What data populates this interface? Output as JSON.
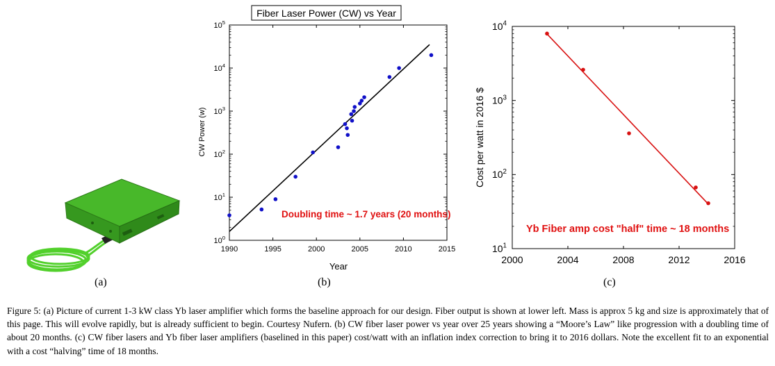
{
  "captions": {
    "a": "(a)",
    "b": "(b)",
    "c": "(c)"
  },
  "caption_text": "Figure 5: (a) Picture of current 1-3 kW class Yb laser amplifier which forms the baseline approach for our design. Fiber output is shown at lower left. Mass is approx 5 kg and size is approximately that of this page. This will evolve rapidly, but is already sufficient to begin. Courtesy Nufern. (b) CW fiber laser power vs year over 25 years showing a “Moore’s Law” like progression with a doubling time of about 20 months. (c) CW fiber lasers and Yb fiber laser amplifiers (baselined in this paper) cost/watt with an inflation index correction to bring it to 2016 dollars. Note the excellent fit to an exponential with a cost “halving” time of 18 months.",
  "photo": {
    "description_colors": {
      "case": "#3aa321",
      "fiber": "#4fd02c"
    }
  },
  "chart_data": [
    {
      "id": "b",
      "type": "scatter",
      "title": "Fiber Laser Power (CW) vs Year",
      "xlabel": "Year",
      "ylabel": "CW Power (w)",
      "xlim": [
        1990,
        2015
      ],
      "ylim": [
        1,
        100000
      ],
      "yscale": "log",
      "xticks": [
        "1990",
        "1995",
        "2000",
        "2005",
        "2010",
        "2015"
      ],
      "yticks": [
        "10^0",
        "10^1",
        "10^2",
        "10^3",
        "10^4",
        "10^5"
      ],
      "point_color": "#1010c8",
      "line_color": "#000000",
      "annotation": "Doubling time ~ 1.7 years (20 months)",
      "annotation_color": "#e01010",
      "points": [
        {
          "x": 1990.0,
          "y": 3.8
        },
        {
          "x": 1993.7,
          "y": 5.2
        },
        {
          "x": 1995.3,
          "y": 9
        },
        {
          "x": 1997.6,
          "y": 30
        },
        {
          "x": 1999.6,
          "y": 110
        },
        {
          "x": 2002.5,
          "y": 145
        },
        {
          "x": 2003.3,
          "y": 500
        },
        {
          "x": 2003.5,
          "y": 400
        },
        {
          "x": 2003.6,
          "y": 280
        },
        {
          "x": 2004.0,
          "y": 850
        },
        {
          "x": 2004.1,
          "y": 600
        },
        {
          "x": 2004.3,
          "y": 1000
        },
        {
          "x": 2004.4,
          "y": 1250
        },
        {
          "x": 2005.0,
          "y": 1500
        },
        {
          "x": 2005.2,
          "y": 1750
        },
        {
          "x": 2005.5,
          "y": 2100
        },
        {
          "x": 2008.4,
          "y": 6200
        },
        {
          "x": 2009.5,
          "y": 10000
        },
        {
          "x": 2013.2,
          "y": 20000
        }
      ],
      "fit": [
        {
          "x": 1990.0,
          "y": 1.6
        },
        {
          "x": 2013.0,
          "y": 35000
        }
      ]
    },
    {
      "id": "c",
      "type": "scatter",
      "title": "",
      "xlabel": "",
      "ylabel": "Cost per watt in 2016 $",
      "xlim": [
        2000,
        2016
      ],
      "ylim": [
        10,
        10000
      ],
      "yscale": "log",
      "xticks": [
        "2000",
        "2004",
        "2008",
        "2012",
        "2016"
      ],
      "yticks": [
        "10^1",
        "10^2",
        "10^3",
        "10^4"
      ],
      "point_color": "#d81010",
      "line_color": "#d81010",
      "annotation": "Yb Fiber amp cost \"half\" time ~ 18 months",
      "annotation_color": "#e01010",
      "points": [
        {
          "x": 2002.5,
          "y": 8000
        },
        {
          "x": 2005.1,
          "y": 2600
        },
        {
          "x": 2008.4,
          "y": 360
        },
        {
          "x": 2013.2,
          "y": 67
        },
        {
          "x": 2014.1,
          "y": 41
        }
      ],
      "fit": [
        {
          "x": 2002.5,
          "y": 7900
        },
        {
          "x": 2014.1,
          "y": 40
        }
      ]
    }
  ]
}
